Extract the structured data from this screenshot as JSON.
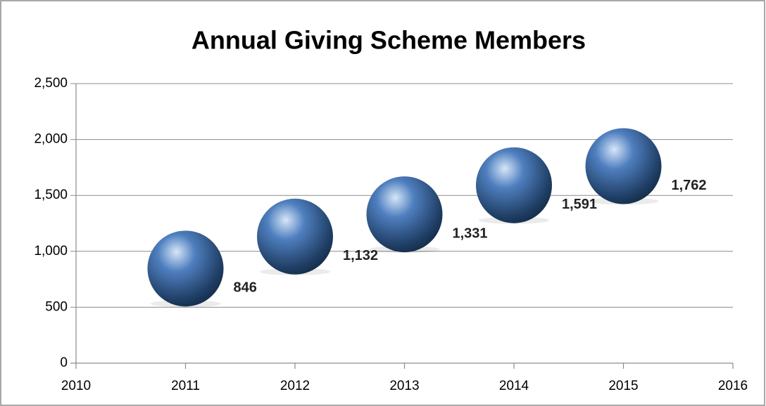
{
  "chart_data": {
    "type": "scatter",
    "title": "Annual Giving Scheme Members",
    "x": [
      2011,
      2012,
      2013,
      2014,
      2015
    ],
    "values": [
      846,
      1132,
      1331,
      1591,
      1762
    ],
    "value_labels": [
      "846",
      "1,132",
      "1,331",
      "1,591",
      "1,762"
    ],
    "color": "#4f7fbf",
    "xlim": [
      2010,
      2016
    ],
    "xticks": [
      2010,
      2011,
      2012,
      2013,
      2014,
      2015,
      2016
    ],
    "ylim": [
      0,
      2500
    ],
    "yticks": [
      0,
      500,
      {
        "value": 1000,
        "label": "1,000"
      },
      {
        "value": 1500,
        "label": "1,500"
      },
      {
        "value": 2000,
        "label": "2,000"
      },
      {
        "value": 2500,
        "label": "2,500"
      }
    ],
    "grid": true
  }
}
